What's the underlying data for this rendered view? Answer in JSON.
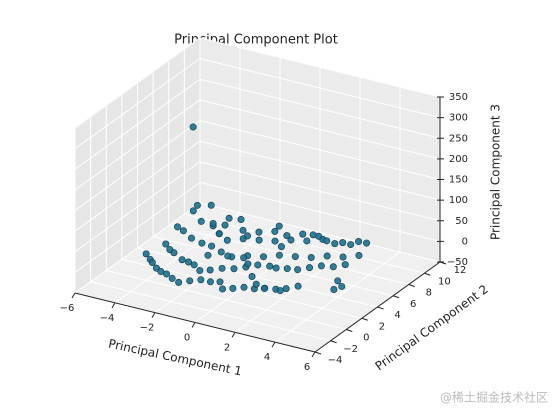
{
  "chart_data": {
    "type": "scatter3d",
    "title": "Principal Component Plot",
    "xlabel": "Principal Component 1",
    "ylabel": "Principal Component 2",
    "zlabel": "Principal Component 3",
    "watermark": "@稀土掘金技术社区",
    "color": "#1f6e8c",
    "xlim": [
      -6,
      6
    ],
    "ylim": [
      -4,
      12
    ],
    "zlim": [
      -50,
      350
    ],
    "xticks": [
      {
        "value": -6,
        "label": "−6"
      },
      {
        "value": -4,
        "label": "−4"
      },
      {
        "value": -2,
        "label": "−2"
      },
      0,
      2,
      4,
      6
    ],
    "yticks": [
      {
        "value": -4,
        "label": "−4"
      },
      {
        "value": -2,
        "label": "−2"
      },
      0,
      2,
      4,
      6,
      8,
      10,
      12
    ],
    "zticks": [
      {
        "value": -50,
        "label": "−50"
      },
      0,
      50,
      100,
      150,
      200,
      250,
      300,
      350
    ],
    "grid": true,
    "x": [
      -4.2,
      -3.8,
      -3.5,
      -3.1,
      -2.8,
      -2.4,
      -2.0,
      -1.6,
      -1.2,
      -0.8,
      -0.4,
      0.0,
      0.4,
      0.8,
      1.2,
      1.6,
      2.0,
      2.4,
      2.8,
      3.2,
      -4.0,
      -3.6,
      -3.2,
      -2.6,
      -2.2,
      -1.8,
      -1.4,
      -1.0,
      -0.6,
      -0.2,
      0.2,
      0.6,
      1.0,
      1.4,
      1.8,
      2.2,
      2.6,
      3.0,
      3.4,
      3.8,
      -3.9,
      -3.3,
      -2.7,
      -2.1,
      -1.5,
      -0.9,
      -0.3,
      0.3,
      0.9,
      1.5,
      2.1,
      2.7,
      3.3,
      3.9,
      -3.0,
      -2.5,
      -1.9,
      -1.3,
      -0.7,
      -0.1,
      0.5,
      1.1,
      1.7,
      2.3,
      2.9,
      3.5,
      -2.3,
      -1.7,
      -1.1,
      -0.5,
      0.1,
      0.7,
      1.3,
      1.9,
      2.5,
      3.1,
      -1.5,
      -0.9,
      -0.3,
      0.3,
      0.9,
      1.5,
      2.1,
      2.7,
      4.4,
      4.6,
      4.8,
      -3.4,
      -3.0,
      -2.6,
      -0.5,
      1.0,
      -3.6,
      -2.9,
      -2.2,
      -1.8,
      0.5,
      2.0,
      -4.0,
      -3.2,
      -4.0
    ],
    "y": [
      0.5,
      0.0,
      -0.5,
      -1.0,
      -1.2,
      -1.5,
      -1.8,
      -2.0,
      -1.6,
      -1.2,
      -1.0,
      -0.8,
      -1.5,
      -1.2,
      -0.8,
      -0.5,
      -0.2,
      0.2,
      0.5,
      1.0,
      2.5,
      2.0,
      1.5,
      1.0,
      0.8,
      0.5,
      0.2,
      0.5,
      1.0,
      1.5,
      2.0,
      2.5,
      3.0,
      2.8,
      3.2,
      3.5,
      4.0,
      4.5,
      5.0,
      5.5,
      4.5,
      4.0,
      3.8,
      3.5,
      3.2,
      3.0,
      3.5,
      4.0,
      4.5,
      5.0,
      5.5,
      6.0,
      6.5,
      7.0,
      6.0,
      5.5,
      5.0,
      5.5,
      6.0,
      6.5,
      7.0,
      7.5,
      8.0,
      8.0,
      8.5,
      9.0,
      5.0,
      6.5,
      7.0,
      7.5,
      7.5,
      8.0,
      8.5,
      8.0,
      8.5,
      9.0,
      1.5,
      2.5,
      3.0,
      2.0,
      1.0,
      0.0,
      -0.5,
      0.0,
      3.0,
      2.0,
      2.5,
      5.5,
      6.0,
      6.5,
      4.0,
      4.5,
      5.0,
      5.5,
      6.0,
      6.5,
      5.5,
      6.0,
      4.0,
      4.5,
      6.0
    ],
    "z": [
      5,
      3,
      6,
      4,
      2,
      5,
      3,
      1,
      4,
      6,
      3,
      5,
      2,
      4,
      6,
      3,
      5,
      2,
      4,
      8,
      4,
      2,
      6,
      3,
      5,
      7,
      2,
      4,
      6,
      3,
      5,
      8,
      3,
      6,
      4,
      2,
      5,
      7,
      3,
      6,
      10,
      6,
      4,
      8,
      5,
      3,
      6,
      4,
      8,
      5,
      3,
      7,
      5,
      9,
      12,
      6,
      4,
      8,
      5,
      3,
      6,
      4,
      8,
      5,
      3,
      7,
      15,
      10,
      6,
      8,
      5,
      9,
      4,
      7,
      3,
      6,
      20,
      12,
      8,
      14,
      4,
      6,
      10,
      5,
      8,
      3,
      6,
      25,
      18,
      12,
      45,
      30,
      55,
      70,
      40,
      35,
      60,
      50,
      25,
      80,
      240
    ]
  }
}
